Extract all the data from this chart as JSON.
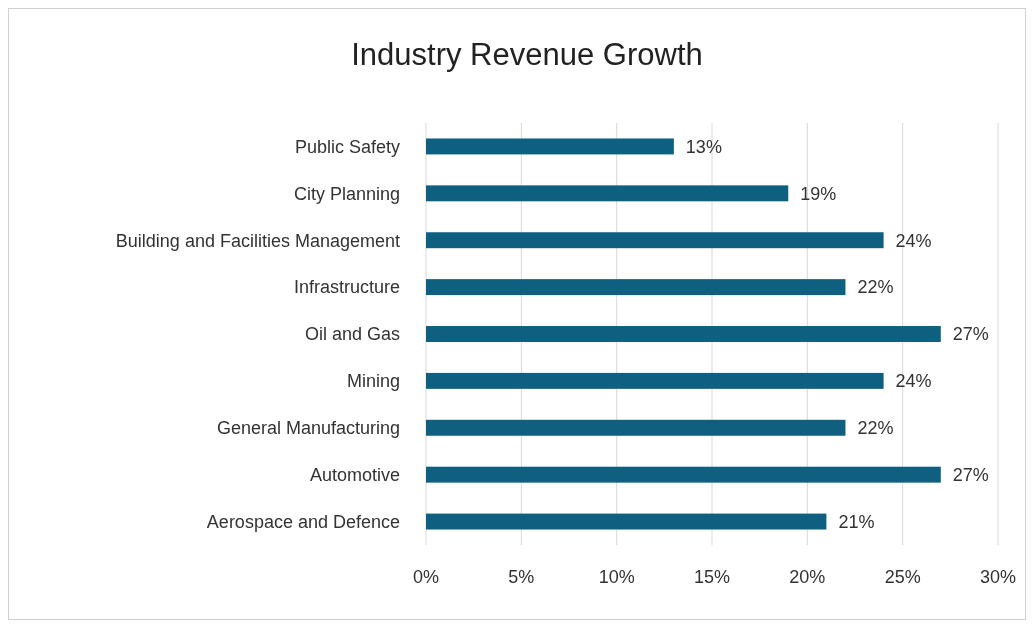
{
  "chart_data": {
    "type": "bar",
    "title": "Industry Revenue Growth",
    "orientation": "horizontal",
    "categories": [
      "Public Safety",
      "City Planning",
      "Building and Facilities Management",
      "Infrastructure",
      "Oil and Gas",
      "Mining",
      "General Manufacturing",
      "Automotive",
      "Aerospace and Defence"
    ],
    "values": [
      13,
      19,
      24,
      22,
      27,
      24,
      22,
      27,
      21
    ],
    "value_labels": [
      "13%",
      "19%",
      "24%",
      "22%",
      "27%",
      "24%",
      "22%",
      "27%",
      "21%"
    ],
    "color": "#0f5f80",
    "xlim": [
      0,
      30
    ],
    "xticks": [
      {
        "value": 0,
        "label": "0%"
      },
      {
        "value": 5,
        "label": "5%"
      },
      {
        "value": 10,
        "label": "10%"
      },
      {
        "value": 15,
        "label": "15%"
      },
      {
        "value": 20,
        "label": "20%"
      },
      {
        "value": 25,
        "label": "25%"
      },
      {
        "value": 30,
        "label": "30%"
      }
    ],
    "grid": "x"
  }
}
